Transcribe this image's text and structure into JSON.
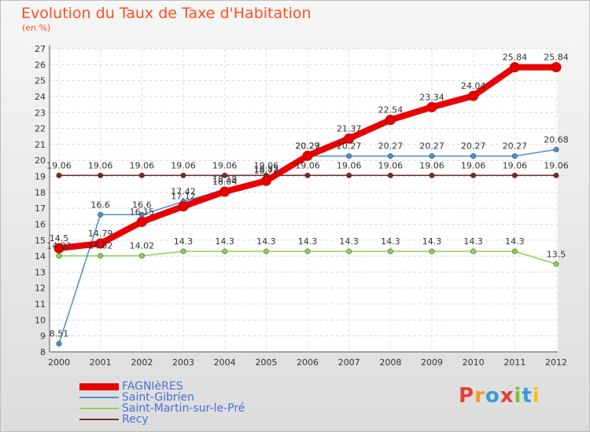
{
  "header": {
    "title": "Evolution du Taux de Taxe d'Habitation",
    "subtitle": "(en %)"
  },
  "logo": {
    "text": "Proxiti",
    "letter_colors": [
      "#e83c3c",
      "#f29a1d",
      "#3a9ad9",
      "#e83c3c",
      "#7fbf3f",
      "#3a9ad9",
      "#f2c21d"
    ]
  },
  "chart_data": {
    "type": "line",
    "title": "Evolution du Taux de Taxe d'Habitation",
    "subtitle": "(en %)",
    "xlabel": "",
    "ylabel": "",
    "x": [
      "2000",
      "2001",
      "2002",
      "2003",
      "2004",
      "2005",
      "2006",
      "2007",
      "2008",
      "2009",
      "2010",
      "2011",
      "2012"
    ],
    "ylim": [
      8,
      27
    ],
    "yticks": [
      8,
      9,
      10,
      11,
      12,
      13,
      14,
      15,
      16,
      17,
      18,
      19,
      20,
      21,
      22,
      23,
      24,
      25,
      26,
      27
    ],
    "grid": true,
    "legend_position": "bottom-left",
    "series": [
      {
        "name": "FAGNIèRES",
        "color": "#e80000",
        "values": [
          14.5,
          14.79,
          16.15,
          17.12,
          18.04,
          18.72,
          20.29,
          21.37,
          22.54,
          23.34,
          24.04,
          25.84,
          25.84
        ],
        "labels": [
          "14.5",
          "14.79",
          "16.15",
          "17.12",
          "18.04",
          "18.72",
          "20.29",
          "21.37",
          "22.54",
          "23.34",
          "24.04",
          "25.84",
          "25.84"
        ]
      },
      {
        "name": "Saint-Gibrien",
        "color": "#4a8fd0",
        "values": [
          8.51,
          16.6,
          16.6,
          17.42,
          18.18,
          18.82,
          20.27,
          20.27,
          20.27,
          20.27,
          20.27,
          20.27,
          20.68
        ],
        "labels": [
          "8.51",
          "16.6",
          "16.6",
          "17.42",
          "18.18",
          "18.82",
          "20.27",
          "20.27",
          "20.27",
          "20.27",
          "20.27",
          "20.27",
          "20.68"
        ]
      },
      {
        "name": "Saint-Martin-sur-le-Pré",
        "color": "#8fd14f",
        "values": [
          14.02,
          14.02,
          14.02,
          14.3,
          14.3,
          14.3,
          14.3,
          14.3,
          14.3,
          14.3,
          14.3,
          14.3,
          13.5
        ],
        "labels": [
          "14.02",
          "14.02",
          "14.02",
          "14.3",
          "14.3",
          "14.3",
          "14.3",
          "14.3",
          "14.3",
          "14.3",
          "14.3",
          "14.3",
          "13.5"
        ]
      },
      {
        "name": "Recy",
        "color": "#7a2a2a",
        "values": [
          19.06,
          19.06,
          19.06,
          19.06,
          19.06,
          19.06,
          19.06,
          19.06,
          19.06,
          19.06,
          19.06,
          19.06,
          19.06
        ],
        "labels": [
          "19.06",
          "19.06",
          "19.06",
          "19.06",
          "19.06",
          "19.06",
          "19.06",
          "19.06",
          "19.06",
          "19.06",
          "19.06",
          "19.06",
          "19.06"
        ]
      }
    ]
  }
}
